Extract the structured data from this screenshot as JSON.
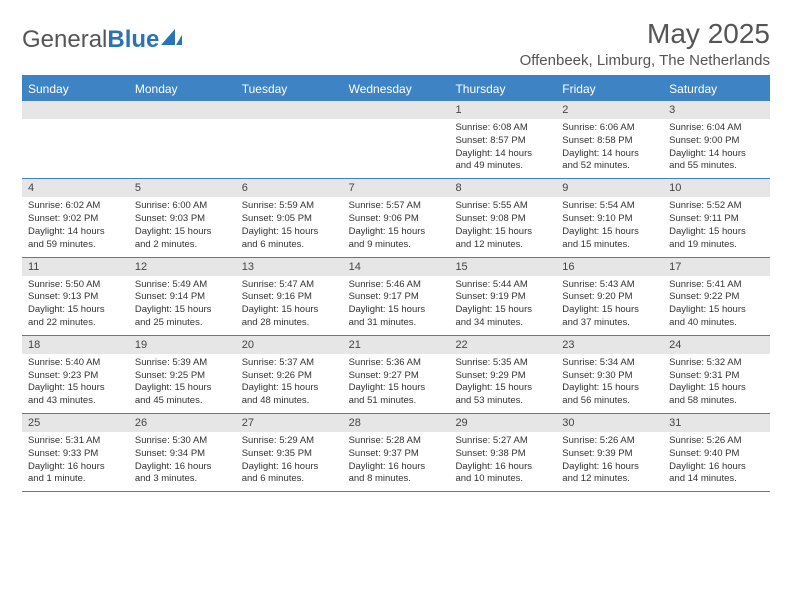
{
  "logo": {
    "text_gray": "General",
    "text_blue": "Blue"
  },
  "title": "May 2025",
  "subtitle": "Offenbeek, Limburg, The Netherlands",
  "day_headers": [
    "Sunday",
    "Monday",
    "Tuesday",
    "Wednesday",
    "Thursday",
    "Friday",
    "Saturday"
  ],
  "colors": {
    "header_bg": "#3e83c4",
    "header_text": "#ffffff",
    "daynum_bg": "#e6e6e6",
    "border": "#3e83c4",
    "body_text": "#333333",
    "title_text": "#555555"
  },
  "typography": {
    "title_fontsize": 28,
    "subtitle_fontsize": 15,
    "dayheader_fontsize": 12,
    "daynum_fontsize": 11,
    "cell_fontsize": 9.5
  },
  "weeks": [
    [
      {
        "n": "",
        "sunrise": "",
        "sunset": "",
        "daylight": ""
      },
      {
        "n": "",
        "sunrise": "",
        "sunset": "",
        "daylight": ""
      },
      {
        "n": "",
        "sunrise": "",
        "sunset": "",
        "daylight": ""
      },
      {
        "n": "",
        "sunrise": "",
        "sunset": "",
        "daylight": ""
      },
      {
        "n": "1",
        "sunrise": "Sunrise: 6:08 AM",
        "sunset": "Sunset: 8:57 PM",
        "daylight": "Daylight: 14 hours and 49 minutes."
      },
      {
        "n": "2",
        "sunrise": "Sunrise: 6:06 AM",
        "sunset": "Sunset: 8:58 PM",
        "daylight": "Daylight: 14 hours and 52 minutes."
      },
      {
        "n": "3",
        "sunrise": "Sunrise: 6:04 AM",
        "sunset": "Sunset: 9:00 PM",
        "daylight": "Daylight: 14 hours and 55 minutes."
      }
    ],
    [
      {
        "n": "4",
        "sunrise": "Sunrise: 6:02 AM",
        "sunset": "Sunset: 9:02 PM",
        "daylight": "Daylight: 14 hours and 59 minutes."
      },
      {
        "n": "5",
        "sunrise": "Sunrise: 6:00 AM",
        "sunset": "Sunset: 9:03 PM",
        "daylight": "Daylight: 15 hours and 2 minutes."
      },
      {
        "n": "6",
        "sunrise": "Sunrise: 5:59 AM",
        "sunset": "Sunset: 9:05 PM",
        "daylight": "Daylight: 15 hours and 6 minutes."
      },
      {
        "n": "7",
        "sunrise": "Sunrise: 5:57 AM",
        "sunset": "Sunset: 9:06 PM",
        "daylight": "Daylight: 15 hours and 9 minutes."
      },
      {
        "n": "8",
        "sunrise": "Sunrise: 5:55 AM",
        "sunset": "Sunset: 9:08 PM",
        "daylight": "Daylight: 15 hours and 12 minutes."
      },
      {
        "n": "9",
        "sunrise": "Sunrise: 5:54 AM",
        "sunset": "Sunset: 9:10 PM",
        "daylight": "Daylight: 15 hours and 15 minutes."
      },
      {
        "n": "10",
        "sunrise": "Sunrise: 5:52 AM",
        "sunset": "Sunset: 9:11 PM",
        "daylight": "Daylight: 15 hours and 19 minutes."
      }
    ],
    [
      {
        "n": "11",
        "sunrise": "Sunrise: 5:50 AM",
        "sunset": "Sunset: 9:13 PM",
        "daylight": "Daylight: 15 hours and 22 minutes."
      },
      {
        "n": "12",
        "sunrise": "Sunrise: 5:49 AM",
        "sunset": "Sunset: 9:14 PM",
        "daylight": "Daylight: 15 hours and 25 minutes."
      },
      {
        "n": "13",
        "sunrise": "Sunrise: 5:47 AM",
        "sunset": "Sunset: 9:16 PM",
        "daylight": "Daylight: 15 hours and 28 minutes."
      },
      {
        "n": "14",
        "sunrise": "Sunrise: 5:46 AM",
        "sunset": "Sunset: 9:17 PM",
        "daylight": "Daylight: 15 hours and 31 minutes."
      },
      {
        "n": "15",
        "sunrise": "Sunrise: 5:44 AM",
        "sunset": "Sunset: 9:19 PM",
        "daylight": "Daylight: 15 hours and 34 minutes."
      },
      {
        "n": "16",
        "sunrise": "Sunrise: 5:43 AM",
        "sunset": "Sunset: 9:20 PM",
        "daylight": "Daylight: 15 hours and 37 minutes."
      },
      {
        "n": "17",
        "sunrise": "Sunrise: 5:41 AM",
        "sunset": "Sunset: 9:22 PM",
        "daylight": "Daylight: 15 hours and 40 minutes."
      }
    ],
    [
      {
        "n": "18",
        "sunrise": "Sunrise: 5:40 AM",
        "sunset": "Sunset: 9:23 PM",
        "daylight": "Daylight: 15 hours and 43 minutes."
      },
      {
        "n": "19",
        "sunrise": "Sunrise: 5:39 AM",
        "sunset": "Sunset: 9:25 PM",
        "daylight": "Daylight: 15 hours and 45 minutes."
      },
      {
        "n": "20",
        "sunrise": "Sunrise: 5:37 AM",
        "sunset": "Sunset: 9:26 PM",
        "daylight": "Daylight: 15 hours and 48 minutes."
      },
      {
        "n": "21",
        "sunrise": "Sunrise: 5:36 AM",
        "sunset": "Sunset: 9:27 PM",
        "daylight": "Daylight: 15 hours and 51 minutes."
      },
      {
        "n": "22",
        "sunrise": "Sunrise: 5:35 AM",
        "sunset": "Sunset: 9:29 PM",
        "daylight": "Daylight: 15 hours and 53 minutes."
      },
      {
        "n": "23",
        "sunrise": "Sunrise: 5:34 AM",
        "sunset": "Sunset: 9:30 PM",
        "daylight": "Daylight: 15 hours and 56 minutes."
      },
      {
        "n": "24",
        "sunrise": "Sunrise: 5:32 AM",
        "sunset": "Sunset: 9:31 PM",
        "daylight": "Daylight: 15 hours and 58 minutes."
      }
    ],
    [
      {
        "n": "25",
        "sunrise": "Sunrise: 5:31 AM",
        "sunset": "Sunset: 9:33 PM",
        "daylight": "Daylight: 16 hours and 1 minute."
      },
      {
        "n": "26",
        "sunrise": "Sunrise: 5:30 AM",
        "sunset": "Sunset: 9:34 PM",
        "daylight": "Daylight: 16 hours and 3 minutes."
      },
      {
        "n": "27",
        "sunrise": "Sunrise: 5:29 AM",
        "sunset": "Sunset: 9:35 PM",
        "daylight": "Daylight: 16 hours and 6 minutes."
      },
      {
        "n": "28",
        "sunrise": "Sunrise: 5:28 AM",
        "sunset": "Sunset: 9:37 PM",
        "daylight": "Daylight: 16 hours and 8 minutes."
      },
      {
        "n": "29",
        "sunrise": "Sunrise: 5:27 AM",
        "sunset": "Sunset: 9:38 PM",
        "daylight": "Daylight: 16 hours and 10 minutes."
      },
      {
        "n": "30",
        "sunrise": "Sunrise: 5:26 AM",
        "sunset": "Sunset: 9:39 PM",
        "daylight": "Daylight: 16 hours and 12 minutes."
      },
      {
        "n": "31",
        "sunrise": "Sunrise: 5:26 AM",
        "sunset": "Sunset: 9:40 PM",
        "daylight": "Daylight: 16 hours and 14 minutes."
      }
    ]
  ]
}
